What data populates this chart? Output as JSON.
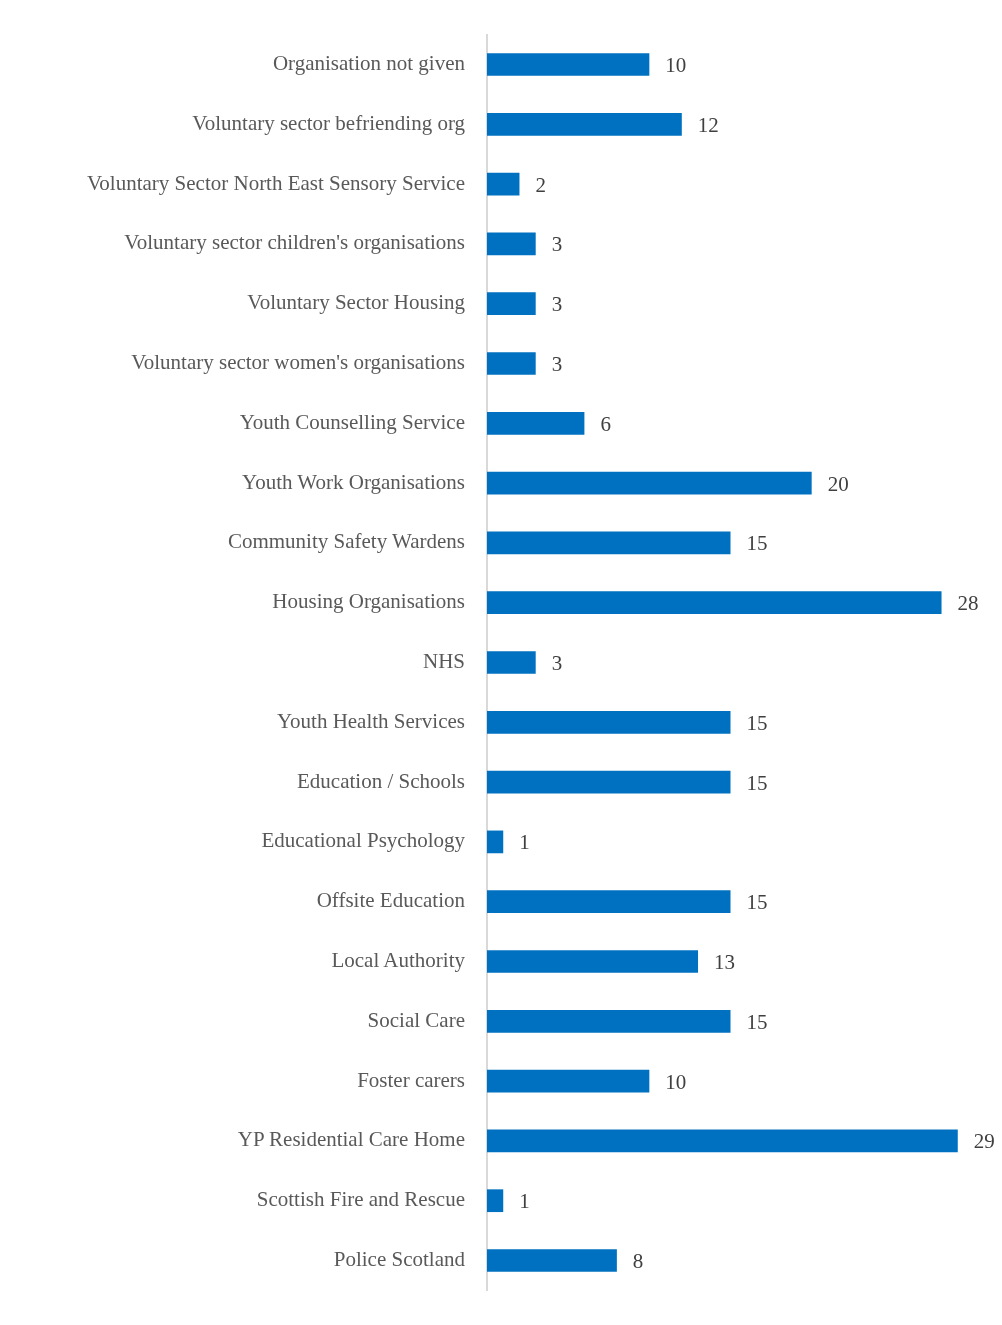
{
  "chart_data": {
    "type": "bar",
    "orientation": "horizontal",
    "categories": [
      "Organisation not given",
      "Voluntary sector befriending org",
      "Voluntary Sector North East Sensory Service",
      "Voluntary sector children's organisations",
      "Voluntary Sector Housing",
      "Voluntary sector women's organisations",
      "Youth Counselling Service",
      "Youth Work Organisations",
      "Community Safety Wardens",
      "Housing Organisations",
      "NHS",
      "Youth Health Services",
      "Education / Schools",
      "Educational Psychology",
      "Offsite Education",
      "Local Authority",
      "Social Care",
      "Foster carers",
      "YP Residential Care Home",
      "Scottish Fire and Rescue",
      "Police Scotland"
    ],
    "values": [
      10,
      12,
      2,
      3,
      3,
      3,
      6,
      20,
      15,
      28,
      3,
      15,
      15,
      1,
      15,
      13,
      15,
      10,
      29,
      1,
      8
    ],
    "color": "#0070c0",
    "data_labels": true,
    "tick_labels": "y",
    "grid": false,
    "legend": false
  }
}
